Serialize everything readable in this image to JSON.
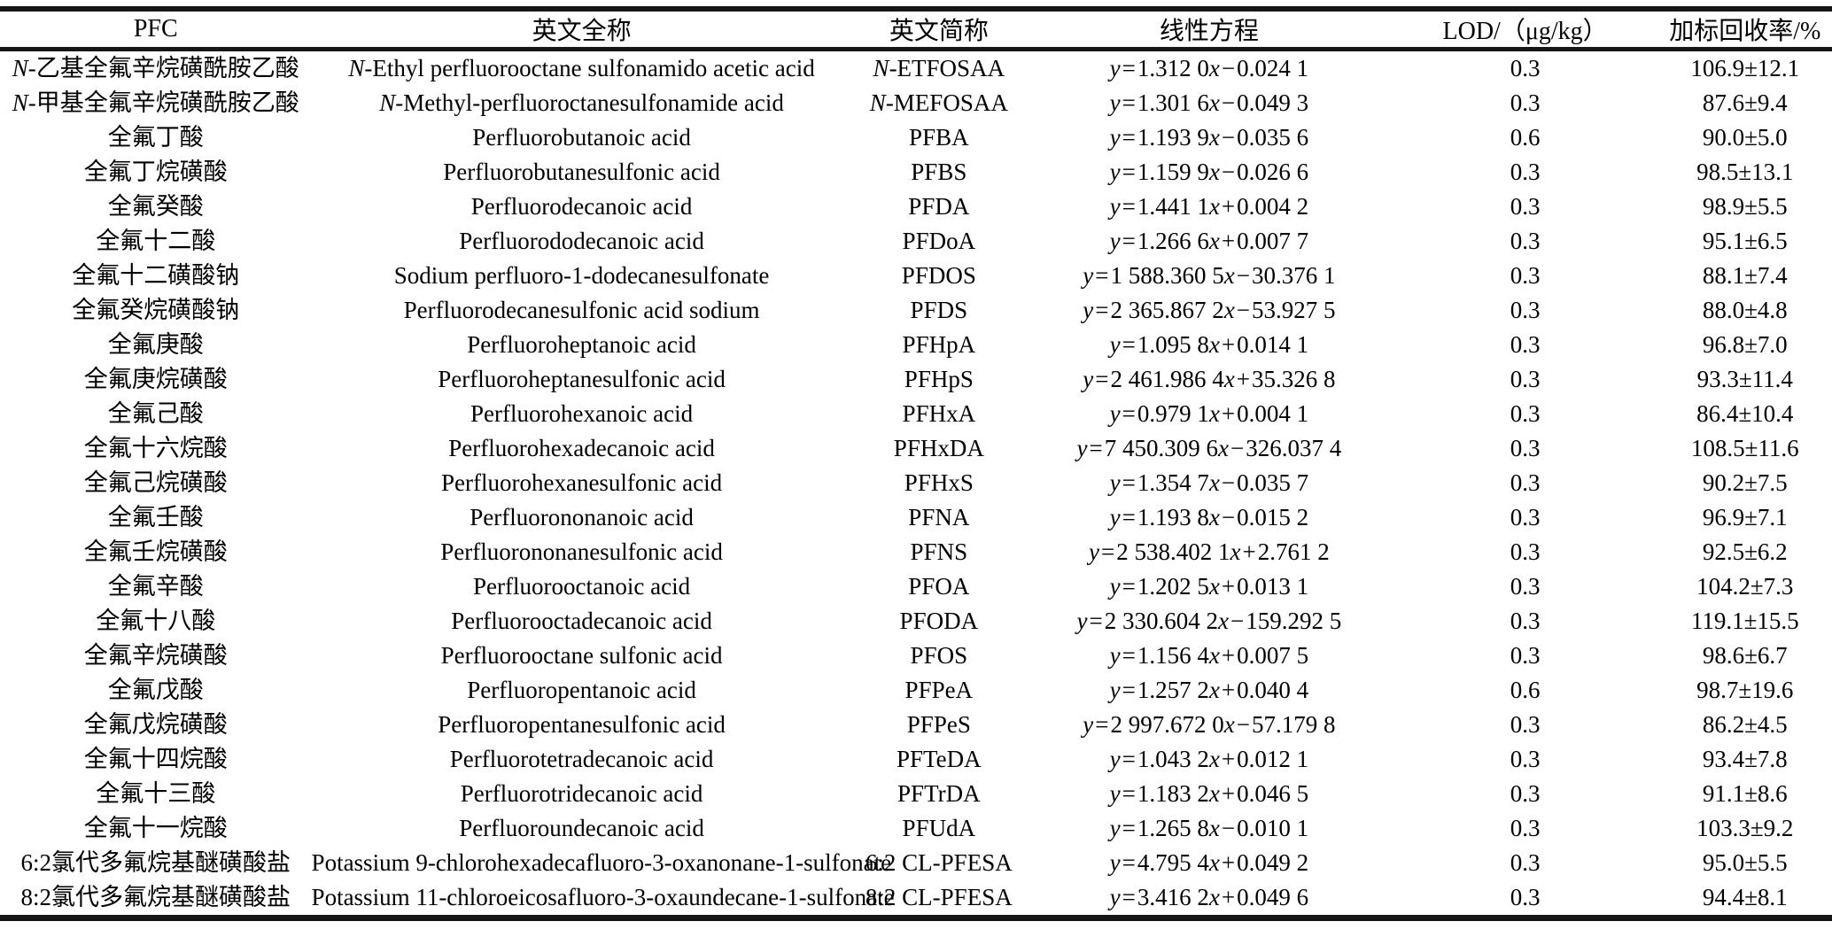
{
  "table": {
    "headers": [
      "PFC",
      "英文全称",
      "英文简称",
      "线性方程",
      "LOD/（μg/kg）",
      "加标回收率/%"
    ],
    "rows": [
      {
        "pfc": "N-乙基全氟辛烷磺酰胺乙酸",
        "full_name": "N-Ethyl perfluorooctane sulfonamido acetic acid",
        "abbr": "N-ETFOSAA",
        "equation": "y=1.312 0x−0.024 1",
        "lod": "0.3",
        "recovery": "106.9±12.1"
      },
      {
        "pfc": "N-甲基全氟辛烷磺酰胺乙酸",
        "full_name": "N-Methyl-perfluoroctanesulfonamide acid",
        "abbr": "N-MEFOSAA",
        "equation": "y=1.301 6x−0.049 3",
        "lod": "0.3",
        "recovery": "87.6±9.4"
      },
      {
        "pfc": "全氟丁酸",
        "full_name": "Perfluorobutanoic acid",
        "abbr": "PFBA",
        "equation": "y=1.193 9x−0.035 6",
        "lod": "0.6",
        "recovery": "90.0±5.0"
      },
      {
        "pfc": "全氟丁烷磺酸",
        "full_name": "Perfluorobutanesulfonic acid",
        "abbr": "PFBS",
        "equation": "y=1.159 9x−0.026 6",
        "lod": "0.3",
        "recovery": "98.5±13.1"
      },
      {
        "pfc": "全氟癸酸",
        "full_name": "Perfluorodecanoic acid",
        "abbr": "PFDA",
        "equation": "y=1.441 1x+0.004 2",
        "lod": "0.3",
        "recovery": "98.9±5.5"
      },
      {
        "pfc": "全氟十二酸",
        "full_name": "Perfluorododecanoic acid",
        "abbr": "PFDoA",
        "equation": "y=1.266 6x+0.007 7",
        "lod": "0.3",
        "recovery": "95.1±6.5"
      },
      {
        "pfc": "全氟十二磺酸钠",
        "full_name": "Sodium perfluoro-1-dodecanesulfonate",
        "abbr": "PFDOS",
        "equation": "y=1 588.360 5x−30.376 1",
        "lod": "0.3",
        "recovery": "88.1±7.4"
      },
      {
        "pfc": "全氟癸烷磺酸钠",
        "full_name": "Perfluorodecanesulfonic acid sodium",
        "abbr": "PFDS",
        "equation": "y=2 365.867 2x−53.927 5",
        "lod": "0.3",
        "recovery": "88.0±4.8"
      },
      {
        "pfc": "全氟庚酸",
        "full_name": "Perfluoroheptanoic acid",
        "abbr": "PFHpA",
        "equation": "y=1.095 8x+0.014 1",
        "lod": "0.3",
        "recovery": "96.8±7.0"
      },
      {
        "pfc": "全氟庚烷磺酸",
        "full_name": "Perfluoroheptanesulfonic acid",
        "abbr": "PFHpS",
        "equation": "y=2 461.986 4x+35.326 8",
        "lod": "0.3",
        "recovery": "93.3±11.4"
      },
      {
        "pfc": "全氟己酸",
        "full_name": "Perfluorohexanoic acid",
        "abbr": "PFHxA",
        "equation": "y=0.979 1x+0.004 1",
        "lod": "0.3",
        "recovery": "86.4±10.4"
      },
      {
        "pfc": "全氟十六烷酸",
        "full_name": "Perfluorohexadecanoic acid",
        "abbr": "PFHxDA",
        "equation": "y=7 450.309 6x−326.037 4",
        "lod": "0.3",
        "recovery": "108.5±11.6"
      },
      {
        "pfc": "全氟己烷磺酸",
        "full_name": "Perfluorohexanesulfonic acid",
        "abbr": "PFHxS",
        "equation": "y=1.354 7x−0.035 7",
        "lod": "0.3",
        "recovery": "90.2±7.5"
      },
      {
        "pfc": "全氟壬酸",
        "full_name": "Perfluorononanoic acid",
        "abbr": "PFNA",
        "equation": "y=1.193 8x−0.015 2",
        "lod": "0.3",
        "recovery": "96.9±7.1"
      },
      {
        "pfc": "全氟壬烷磺酸",
        "full_name": "Perfluorononanesulfonic acid",
        "abbr": "PFNS",
        "equation": "y=2 538.402 1x+2.761 2",
        "lod": "0.3",
        "recovery": "92.5±6.2"
      },
      {
        "pfc": "全氟辛酸",
        "full_name": "Perfluorooctanoic acid",
        "abbr": "PFOA",
        "equation": "y=1.202 5x+0.013 1",
        "lod": "0.3",
        "recovery": "104.2±7.3"
      },
      {
        "pfc": "全氟十八酸",
        "full_name": "Perfluorooctadecanoic acid",
        "abbr": "PFODA",
        "equation": "y=2 330.604 2x−159.292 5",
        "lod": "0.3",
        "recovery": "119.1±15.5"
      },
      {
        "pfc": "全氟辛烷磺酸",
        "full_name": "Perfluorooctane sulfonic acid",
        "abbr": "PFOS",
        "equation": "y=1.156 4x+0.007 5",
        "lod": "0.3",
        "recovery": "98.6±6.7"
      },
      {
        "pfc": "全氟戊酸",
        "full_name": "Perfluoropentanoic acid",
        "abbr": "PFPeA",
        "equation": "y=1.257 2x+0.040 4",
        "lod": "0.6",
        "recovery": "98.7±19.6"
      },
      {
        "pfc": "全氟戊烷磺酸",
        "full_name": "Perfluoropentanesulfonic acid",
        "abbr": "PFPeS",
        "equation": "y=2 997.672 0x−57.179 8",
        "lod": "0.3",
        "recovery": "86.2±4.5"
      },
      {
        "pfc": "全氟十四烷酸",
        "full_name": "Perfluorotetradecanoic acid",
        "abbr": "PFTeDA",
        "equation": "y=1.043 2x+0.012 1",
        "lod": "0.3",
        "recovery": "93.4±7.8"
      },
      {
        "pfc": "全氟十三酸",
        "full_name": "Perfluorotridecanoic acid",
        "abbr": "PFTrDA",
        "equation": "y=1.183 2x+0.046 5",
        "lod": "0.3",
        "recovery": "91.1±8.6"
      },
      {
        "pfc": "全氟十一烷酸",
        "full_name": "Perfluoroundecanoic acid",
        "abbr": "PFUdA",
        "equation": "y=1.265 8x−0.010 1",
        "lod": "0.3",
        "recovery": "103.3±9.2"
      },
      {
        "pfc": "6:2氯代多氟烷基醚磺酸盐",
        "full_name": "Potassium 9-chlorohexadecafluoro-3-oxanonane-1-sulfonate",
        "abbr": "6:2 CL-PFESA",
        "equation": "y=4.795 4x+0.049 2",
        "lod": "0.3",
        "recovery": "95.0±5.5"
      },
      {
        "pfc": "8:2氯代多氟烷基醚磺酸盐",
        "full_name": "Potassium 11-chloroeicosafluoro-3-oxaundecane-1-sulfonate",
        "abbr": "8:2 CL-PFESA",
        "equation": "y=3.416 2x+0.049 6",
        "lod": "0.3",
        "recovery": "94.4±8.1"
      }
    ]
  }
}
